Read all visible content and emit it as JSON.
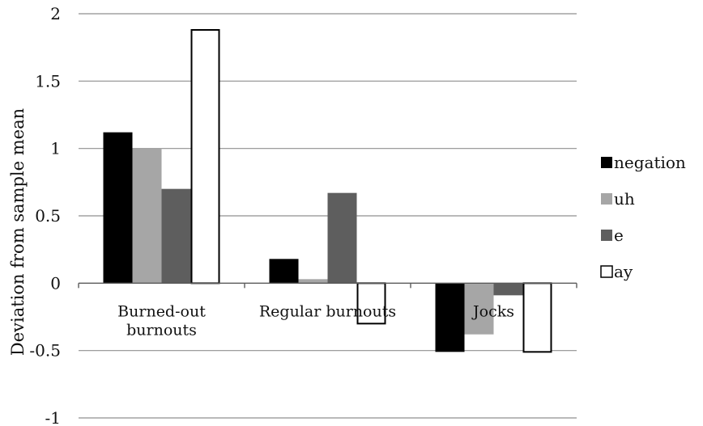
{
  "chart_data": {
    "type": "bar",
    "title": "",
    "xlabel": "",
    "ylabel": "Deviation from sample mean",
    "ylim": [
      -1,
      2
    ],
    "yticks": [
      2,
      1.5,
      1,
      0.5,
      0,
      -0.5,
      -1
    ],
    "ytick_labels": [
      "2",
      "1.5",
      "1",
      "0.5",
      "0",
      "-0.5",
      "-1"
    ],
    "grid": true,
    "legend_position": "right",
    "categories": [
      [
        "Burned-out",
        "burnouts"
      ],
      [
        "Regular burnouts"
      ],
      [
        "Jocks"
      ]
    ],
    "series": [
      {
        "name": "negation",
        "color": "#000000",
        "values": [
          1.12,
          0.18,
          -0.51
        ]
      },
      {
        "name": "uh",
        "color": "#a6a6a6",
        "values": [
          1.0,
          0.03,
          -0.38
        ]
      },
      {
        "name": "e",
        "color": "#5e5e5e",
        "values": [
          0.7,
          0.67,
          -0.09
        ]
      },
      {
        "name": "ay",
        "color": "#ffffff",
        "values": [
          1.88,
          -0.3,
          -0.51
        ]
      }
    ]
  }
}
